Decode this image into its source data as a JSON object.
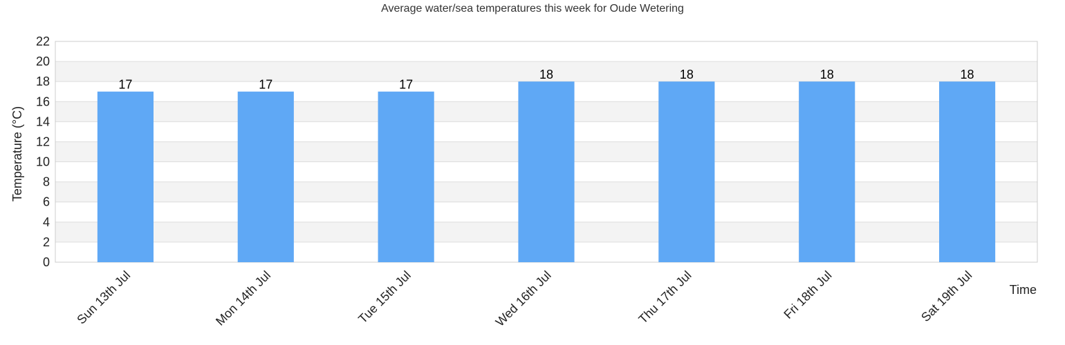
{
  "chart_data": {
    "type": "bar",
    "title": "Average water/sea temperatures this week for Oude Wetering",
    "xlabel": "Time",
    "ylabel": "Temperature (°C)",
    "categories": [
      "Sun 13th Jul",
      "Mon 14th Jul",
      "Tue 15th Jul",
      "Wed 16th Jul",
      "Thu 17th Jul",
      "Fri 18th Jul",
      "Sat 19th Jul"
    ],
    "values": [
      17,
      17,
      17,
      18,
      18,
      18,
      18
    ],
    "ylim": [
      0,
      22
    ],
    "yticks": [
      "0",
      "2",
      "4",
      "6",
      "8",
      "10",
      "12",
      "14",
      "16",
      "18",
      "20",
      "22"
    ],
    "grid": true,
    "legend": "none",
    "colors": {
      "bar": "#5fa8f5",
      "band": "#f3f3f3",
      "grid": "#dddddd",
      "axis": "#cccccc"
    }
  }
}
